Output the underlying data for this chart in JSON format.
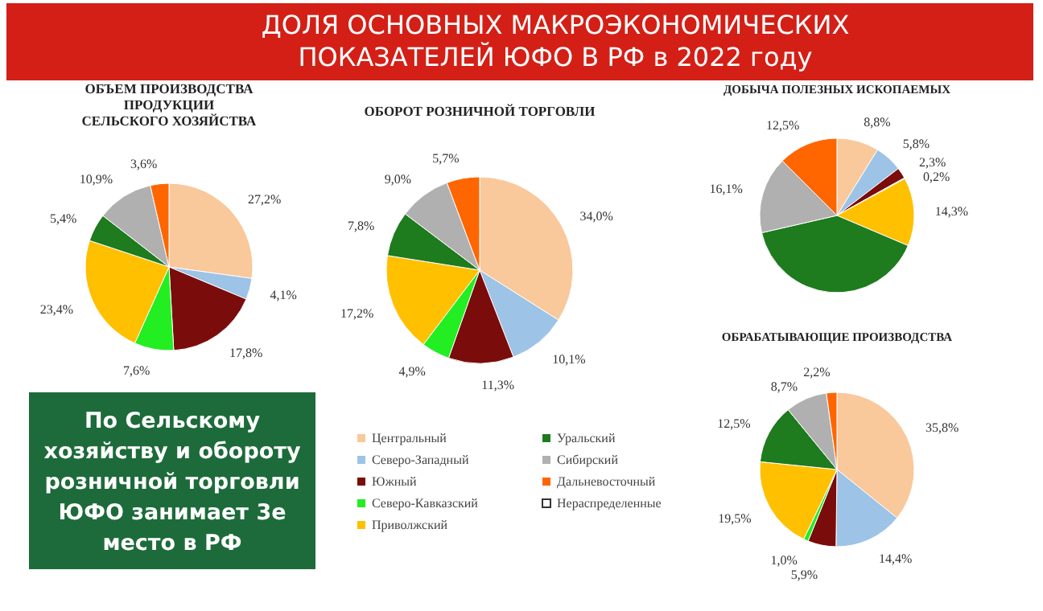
{
  "chart_data": [
    {
      "type": "other",
      "title": "ДОЛЯ ОСНОВНЫХ  МАКРОЭКОНОМИЧЕСКИХ ПОКАЗАТЕЛЕЙ ЮФО В РФ  в 2022 году",
      "annotations": [
        "По Сельскому хозяйству и обороту розничной торговли ЮФО занимает 3е место в РФ"
      ]
    },
    {
      "type": "pie",
      "title": "ОБЪЕМ ПРОИЗВОДСТВА\nПРОДУКЦИИ\nСЕЛЬСКОГО ХОЗЯЙСТВА",
      "categories": [
        null,
        null,
        null,
        null,
        null,
        null,
        null,
        null
      ],
      "values": [
        27.2,
        4.1,
        17.8,
        7.6,
        23.4,
        5.4,
        10.9,
        3.6
      ],
      "colors": [
        "#f9c89b",
        "#9dc3e6",
        "#7b0c0c",
        "#22ee22",
        "#ffc000",
        "#1e7b1e",
        "#b0b0b0",
        "#ff6600"
      ],
      "value_labels": [
        "27,2%",
        "4,1%",
        "17,8%",
        "7,6%",
        "23,4%",
        "5,4%",
        "10,9%",
        "3,6%"
      ]
    },
    {
      "type": "pie",
      "title": "ОБОРОТ РОЗНИЧНОЙ ТОРГОВЛИ",
      "categories": [
        "Центральный",
        "Северо-Западный",
        "Южный",
        "Северо-Кавказский",
        "Приволжский",
        "Уральский",
        "Сибирский",
        "Дальневосточный",
        "Нераспределенные"
      ],
      "values": [
        34.0,
        10.1,
        11.3,
        4.9,
        17.2,
        7.8,
        9.0,
        5.7,
        null
      ],
      "colors": [
        "#f9c89b",
        "#9dc3e6",
        "#7b0c0c",
        "#22ee22",
        "#ffc000",
        "#1e7b1e",
        "#b0b0b0",
        "#ff6600",
        "#ffffff"
      ],
      "value_labels": [
        "34,0%",
        "10,1%",
        "11,3%",
        "4,9%",
        "17,2%",
        "7,8%",
        "9,0%",
        "5,7%",
        null
      ],
      "legend": "bottom"
    },
    {
      "type": "pie",
      "title": "ДОБЫЧА ПОЛЕЗНЫХ ИСКОПАЕМЫХ",
      "categories": [
        null,
        null,
        null,
        null,
        null,
        null,
        null,
        null
      ],
      "values": [
        8.8,
        5.8,
        2.3,
        0.2,
        14.3,
        40.0,
        16.1,
        12.5
      ],
      "colors": [
        "#f9c89b",
        "#9dc3e6",
        "#7b0c0c",
        "#22ee22",
        "#ffc000",
        "#1e7b1e",
        "#b0b0b0",
        "#ff6600"
      ],
      "value_labels": [
        "8,8%",
        "5,8%",
        "2,3%",
        "0,2%",
        "14,3%",
        null,
        "16,1%",
        "12,5%"
      ]
    },
    {
      "type": "pie",
      "title": "ОБРАБАТЫВАЮЩИЕ ПРОИЗВОДСТВА",
      "categories": [
        null,
        null,
        null,
        null,
        null,
        null,
        null,
        null
      ],
      "values": [
        35.8,
        14.4,
        5.9,
        1.0,
        19.5,
        12.5,
        8.7,
        2.2
      ],
      "colors": [
        "#f9c89b",
        "#9dc3e6",
        "#7b0c0c",
        "#22ee22",
        "#ffc000",
        "#1e7b1e",
        "#b0b0b0",
        "#ff6600"
      ],
      "value_labels": [
        "35,8%",
        "14,4%",
        "5,9%",
        "1,0%",
        "19,5%",
        "12,5%",
        "8,7%",
        "2,2%"
      ]
    }
  ]
}
